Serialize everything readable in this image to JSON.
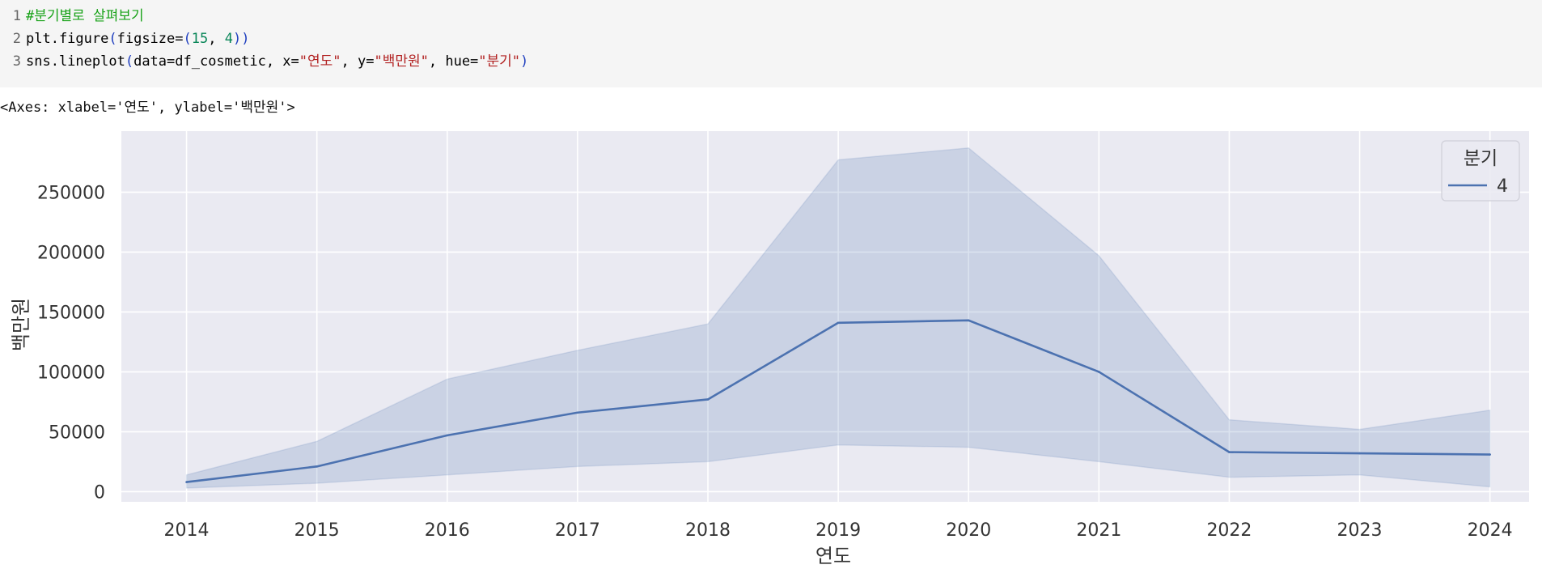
{
  "code_cell": {
    "lines": [
      {
        "number": "1",
        "tokens": [
          {
            "text": "#분기별로 살펴보기",
            "class": "cmt"
          }
        ]
      },
      {
        "number": "2",
        "tokens": [
          {
            "text": "plt.figure",
            "class": ""
          },
          {
            "text": "(",
            "class": "par"
          },
          {
            "text": "figsize=",
            "class": ""
          },
          {
            "text": "(",
            "class": "par"
          },
          {
            "text": "15",
            "class": "num"
          },
          {
            "text": ", ",
            "class": ""
          },
          {
            "text": "4",
            "class": "num"
          },
          {
            "text": "))",
            "class": "par"
          }
        ]
      },
      {
        "number": "3",
        "tokens": [
          {
            "text": "sns.lineplot",
            "class": ""
          },
          {
            "text": "(",
            "class": "par"
          },
          {
            "text": "data=df_cosmetic, x=",
            "class": ""
          },
          {
            "text": "\"연도\"",
            "class": "str"
          },
          {
            "text": ", y=",
            "class": ""
          },
          {
            "text": "\"백만원\"",
            "class": "str"
          },
          {
            "text": ", hue=",
            "class": ""
          },
          {
            "text": "\"분기\"",
            "class": "str"
          },
          {
            "text": ")",
            "class": "par"
          }
        ]
      }
    ]
  },
  "output_text": "<Axes: xlabel='연도', ylabel='백만원'>",
  "chart_data": {
    "type": "line",
    "x": [
      2014,
      2015,
      2016,
      2017,
      2018,
      2019,
      2020,
      2021,
      2022,
      2023,
      2024
    ],
    "series": [
      {
        "name": "4",
        "values": [
          8000,
          21000,
          47000,
          66000,
          77000,
          141000,
          143000,
          100000,
          33000,
          32000,
          31000
        ],
        "ci_upper": [
          14000,
          42000,
          94000,
          118000,
          140000,
          277000,
          287000,
          197000,
          60000,
          52000,
          68000
        ],
        "ci_lower": [
          3000,
          7000,
          14000,
          21000,
          25000,
          39000,
          37000,
          25000,
          12000,
          14000,
          4000
        ]
      }
    ],
    "xlabel": "연도",
    "ylabel": "백만원",
    "xticks": [
      "2014",
      "2015",
      "2016",
      "2017",
      "2018",
      "2019",
      "2020",
      "2021",
      "2022",
      "2023",
      "2024"
    ],
    "yticks": [
      0,
      50000,
      100000,
      150000,
      200000,
      250000
    ],
    "ytick_labels": [
      "0",
      "50000",
      "100000",
      "150000",
      "200000",
      "250000"
    ],
    "ylim": [
      -8500,
      301000
    ],
    "xlim": [
      2013.5,
      2024.3
    ],
    "legend": {
      "title": "분기",
      "placement": "top-right"
    },
    "grid": true,
    "colors": {
      "line": "#4c72b0",
      "band": "#4c72b0",
      "background": "#eaeaf2",
      "grid": "#ffffff"
    }
  }
}
